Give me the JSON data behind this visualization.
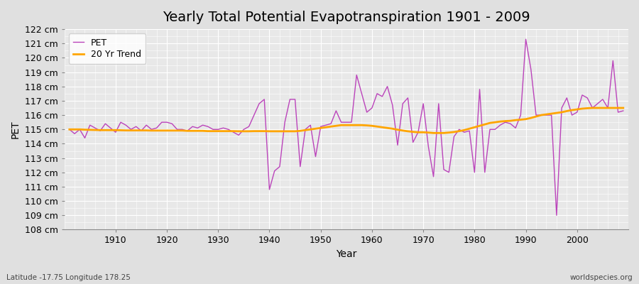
{
  "title": "Yearly Total Potential Evapotranspiration 1901 - 2009",
  "xlabel": "Year",
  "ylabel": "PET",
  "subtitle": "Latitude -17.75 Longitude 178.25",
  "watermark": "worldspecies.org",
  "years": [
    1901,
    1902,
    1903,
    1904,
    1905,
    1906,
    1907,
    1908,
    1909,
    1910,
    1911,
    1912,
    1913,
    1914,
    1915,
    1916,
    1917,
    1918,
    1919,
    1920,
    1921,
    1922,
    1923,
    1924,
    1925,
    1926,
    1927,
    1928,
    1929,
    1930,
    1931,
    1932,
    1933,
    1934,
    1935,
    1936,
    1937,
    1938,
    1939,
    1940,
    1941,
    1942,
    1943,
    1944,
    1945,
    1946,
    1947,
    1948,
    1949,
    1950,
    1951,
    1952,
    1953,
    1954,
    1955,
    1956,
    1957,
    1958,
    1959,
    1960,
    1961,
    1962,
    1963,
    1964,
    1965,
    1966,
    1967,
    1968,
    1969,
    1970,
    1971,
    1972,
    1973,
    1974,
    1975,
    1976,
    1977,
    1978,
    1979,
    1980,
    1981,
    1982,
    1983,
    1984,
    1985,
    1986,
    1987,
    1988,
    1989,
    1990,
    1991,
    1992,
    1993,
    1994,
    1995,
    1996,
    1997,
    1998,
    1999,
    2000,
    2001,
    2002,
    2003,
    2004,
    2005,
    2006,
    2007,
    2008,
    2009
  ],
  "pet": [
    115.0,
    114.7,
    115.0,
    114.4,
    115.3,
    115.1,
    114.9,
    115.4,
    115.1,
    114.8,
    115.5,
    115.3,
    115.0,
    115.2,
    114.9,
    115.3,
    115.0,
    115.1,
    115.5,
    115.5,
    115.4,
    115.0,
    115.0,
    114.9,
    115.2,
    115.1,
    115.3,
    115.2,
    115.0,
    115.0,
    115.1,
    115.0,
    114.8,
    114.6,
    115.0,
    115.2,
    116.0,
    116.8,
    117.1,
    110.8,
    112.1,
    112.4,
    115.5,
    117.1,
    117.1,
    112.4,
    115.0,
    115.3,
    113.1,
    115.2,
    115.3,
    115.4,
    116.3,
    115.5,
    115.5,
    115.5,
    118.8,
    117.5,
    116.2,
    116.5,
    117.5,
    117.3,
    118.0,
    116.7,
    113.9,
    116.8,
    117.2,
    114.1,
    114.8,
    116.8,
    113.8,
    111.7,
    116.8,
    112.2,
    112.0,
    114.5,
    115.0,
    114.8,
    114.9,
    112.0,
    117.8,
    112.0,
    115.0,
    115.0,
    115.3,
    115.5,
    115.4,
    115.1,
    116.0,
    121.3,
    119.2,
    116.0,
    116.0,
    116.0,
    116.0,
    109.0,
    116.5,
    117.2,
    116.0,
    116.2,
    117.4,
    117.2,
    116.5,
    116.8,
    117.1,
    116.5,
    119.8,
    116.2,
    116.3
  ],
  "trend": [
    115.0,
    115.0,
    115.0,
    114.98,
    114.97,
    114.96,
    114.95,
    114.95,
    114.95,
    114.95,
    114.94,
    114.93,
    114.93,
    114.93,
    114.93,
    114.93,
    114.92,
    114.92,
    114.92,
    114.92,
    114.92,
    114.92,
    114.92,
    114.9,
    114.9,
    114.9,
    114.9,
    114.88,
    114.88,
    114.88,
    114.88,
    114.88,
    114.88,
    114.87,
    114.87,
    114.87,
    114.88,
    114.88,
    114.88,
    114.87,
    114.87,
    114.87,
    114.87,
    114.87,
    114.87,
    114.9,
    114.95,
    115.0,
    115.05,
    115.1,
    115.15,
    115.2,
    115.25,
    115.3,
    115.3,
    115.3,
    115.3,
    115.3,
    115.28,
    115.25,
    115.2,
    115.15,
    115.1,
    115.05,
    114.98,
    114.92,
    114.87,
    114.83,
    114.8,
    114.8,
    114.78,
    114.75,
    114.75,
    114.75,
    114.78,
    114.82,
    114.88,
    114.95,
    115.05,
    115.15,
    115.25,
    115.35,
    115.45,
    115.5,
    115.55,
    115.58,
    115.6,
    115.65,
    115.68,
    115.72,
    115.8,
    115.9,
    116.0,
    116.05,
    116.1,
    116.15,
    116.2,
    116.28,
    116.35,
    116.4,
    116.45,
    116.48,
    116.5,
    116.5,
    116.5,
    116.5,
    116.5,
    116.5,
    116.5
  ],
  "pet_color": "#BB44BB",
  "trend_color": "#FFA500",
  "bg_color": "#E0E0E0",
  "plot_bg_color": "#E8E8E8",
  "grid_color": "#FFFFFF",
  "ylim": [
    108,
    122
  ],
  "xlim": [
    1900,
    2010
  ],
  "yticks": [
    108,
    109,
    110,
    111,
    112,
    113,
    114,
    115,
    116,
    117,
    118,
    119,
    120,
    121,
    122
  ],
  "xticks": [
    1910,
    1920,
    1930,
    1940,
    1950,
    1960,
    1970,
    1980,
    1990,
    2000
  ],
  "title_fontsize": 14,
  "label_fontsize": 10,
  "tick_fontsize": 9
}
